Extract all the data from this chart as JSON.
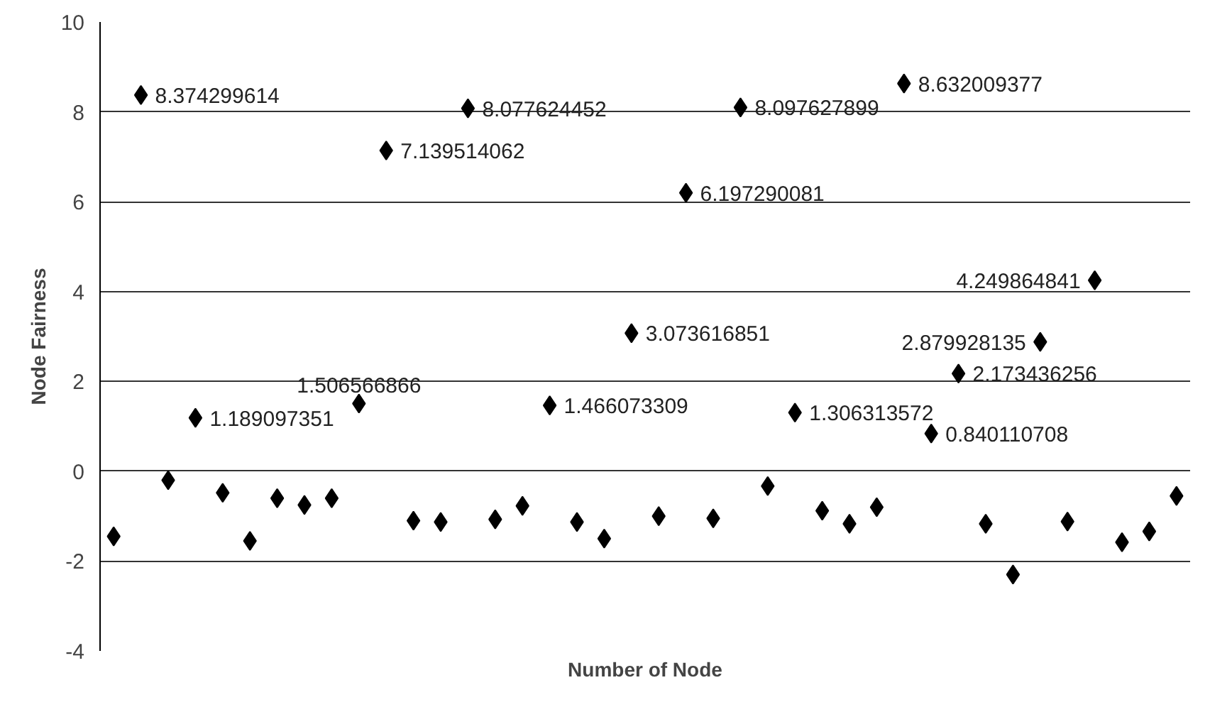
{
  "chart_data": {
    "type": "scatter",
    "xlabel": "Number of Node",
    "ylabel": "Node Fairness",
    "categories": [
      null,
      null,
      null,
      null,
      null,
      null,
      null,
      null,
      null,
      null,
      null,
      null,
      null,
      null,
      null,
      null,
      null,
      null,
      null,
      null,
      null,
      null,
      null,
      null,
      null,
      null,
      null,
      null,
      null,
      null,
      null,
      null,
      null,
      null,
      null,
      null,
      null,
      null,
      null,
      null
    ],
    "series": [
      {
        "color": "#000000",
        "values": [
          -1.45,
          8.374299614,
          -0.2,
          1.189097351,
          -0.48,
          -1.55,
          -0.6,
          -0.75,
          -0.6,
          1.506566866,
          7.139514062,
          -1.1,
          -1.13,
          8.077624452,
          -1.07,
          -0.77,
          1.466073309,
          -1.13,
          -1.5,
          3.073616851,
          -1.0,
          6.197290081,
          -1.05,
          8.097627899,
          -0.33,
          1.306313572,
          -0.88,
          -1.17,
          -0.8,
          8.632009377,
          0.840110708,
          2.173436256,
          -1.17,
          -2.3,
          2.879928135,
          -1.12,
          4.249864841,
          -1.58,
          -1.34,
          -0.55
        ],
        "value_labels": [
          null,
          "8.374299614",
          null,
          "1.189097351",
          null,
          null,
          null,
          null,
          null,
          "1.506566866",
          "7.139514062",
          null,
          null,
          "8.077624452",
          null,
          null,
          "1.466073309",
          null,
          null,
          "3.073616851",
          null,
          "6.197290081",
          null,
          "8.097627899",
          null,
          "1.306313572",
          null,
          null,
          null,
          "8.632009377",
          "0.840110708",
          "2.173436256",
          null,
          null,
          "2.879928135",
          null,
          "4.249864841",
          null,
          null,
          null
        ]
      }
    ],
    "ylim": [
      -4,
      10
    ],
    "yticks": [
      -4,
      -2,
      0,
      2,
      4,
      6,
      8,
      10
    ],
    "grid": "y",
    "marker": "diamond"
  }
}
